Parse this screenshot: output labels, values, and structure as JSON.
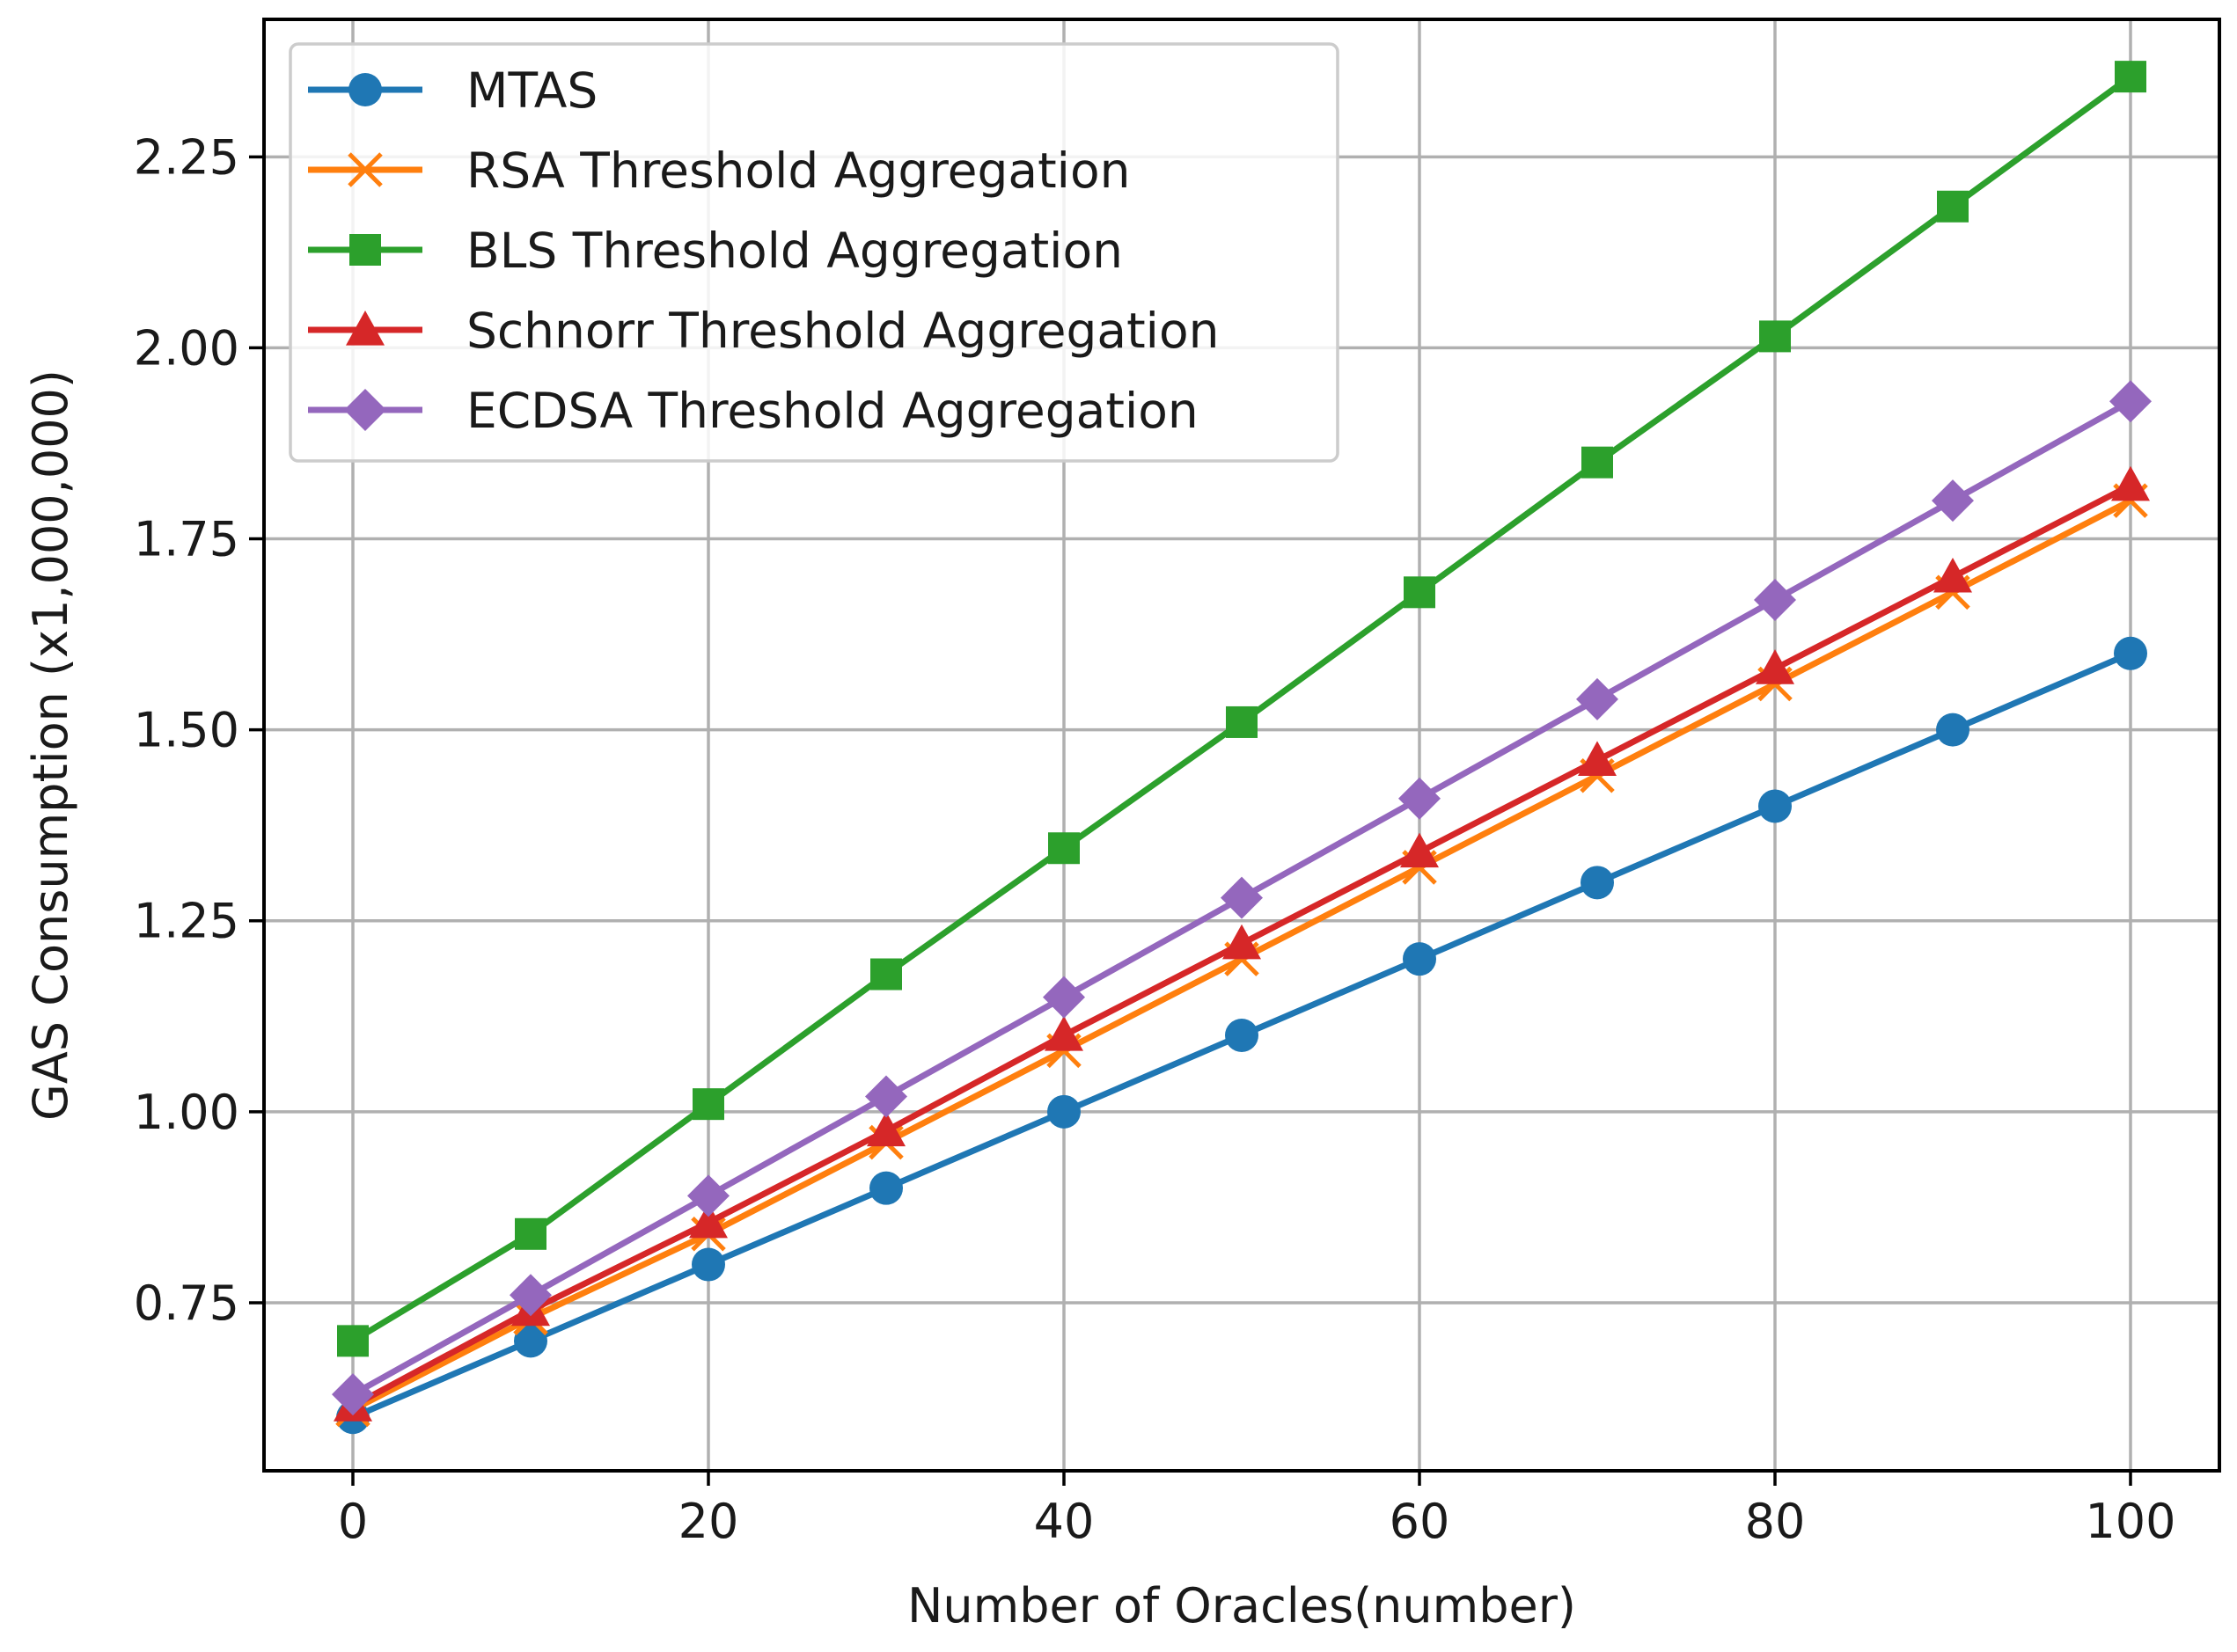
{
  "chart_data": {
    "type": "line",
    "title": "",
    "xlabel": "Number of Oracles(number)",
    "ylabel": "GAS Consumption (x1,000,000)",
    "xlim": [
      -5,
      105
    ],
    "ylim": [
      0.53,
      2.43
    ],
    "xticks": [
      0,
      20,
      40,
      60,
      80,
      100
    ],
    "xtick_labels": [
      "0",
      "20",
      "40",
      "60",
      "80",
      "100"
    ],
    "yticks": [
      0.75,
      1.0,
      1.25,
      1.5,
      1.75,
      2.0,
      2.25
    ],
    "ytick_labels": [
      "0.75",
      "1.00",
      "1.25",
      "1.50",
      "1.75",
      "2.00",
      "2.25"
    ],
    "grid": true,
    "legend_position": "top-left",
    "x": [
      0,
      10,
      20,
      30,
      40,
      50,
      60,
      70,
      80,
      90,
      100
    ],
    "series": [
      {
        "name": "MTAS",
        "color": "#1f77b4",
        "marker": "circle",
        "values": [
          0.6,
          0.7,
          0.8,
          0.9,
          1.0,
          1.1,
          1.2,
          1.3,
          1.4,
          1.5,
          1.6
        ]
      },
      {
        "name": "RSA Threshold Aggregation",
        "color": "#ff7f0e",
        "marker": "x",
        "values": [
          0.61,
          0.73,
          0.84,
          0.96,
          1.08,
          1.2,
          1.32,
          1.44,
          1.56,
          1.68,
          1.8
        ]
      },
      {
        "name": "BLS Threshold Aggregation",
        "color": "#2ca02c",
        "marker": "square",
        "values": [
          0.7,
          0.84,
          1.01,
          1.18,
          1.345,
          1.51,
          1.68,
          1.85,
          2.015,
          2.185,
          2.355
        ]
      },
      {
        "name": "Schnorr Threshold Aggregation",
        "color": "#d62728",
        "marker": "triangle",
        "values": [
          0.615,
          0.74,
          0.855,
          0.975,
          1.1,
          1.22,
          1.34,
          1.46,
          1.58,
          1.7,
          1.82
        ]
      },
      {
        "name": "ECDSA Threshold Aggregation",
        "color": "#9467bd",
        "marker": "diamond",
        "values": [
          0.63,
          0.76,
          0.89,
          1.02,
          1.15,
          1.28,
          1.41,
          1.54,
          1.67,
          1.8,
          1.93
        ]
      }
    ]
  }
}
